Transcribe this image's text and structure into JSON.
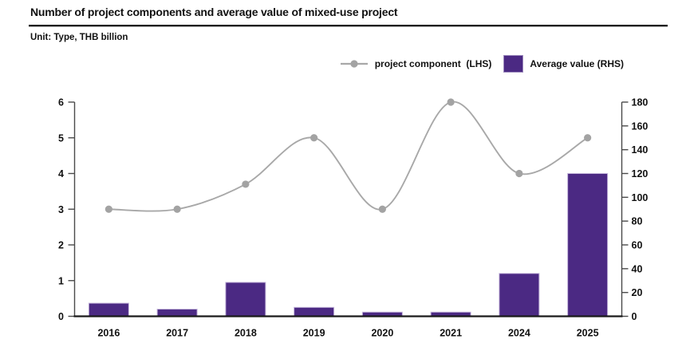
{
  "header": {
    "title": "Number of project components and average value of mixed-use project",
    "unit_label": "Unit: Type, THB billion"
  },
  "legend": {
    "items": [
      {
        "marker": "line-marker",
        "label": "project component  (LHS)"
      },
      {
        "marker": "box-marker",
        "label": "Average value (RHS)"
      }
    ]
  },
  "colors": {
    "bar_fill": "#4B2983",
    "bar_border": "#c3b4da",
    "line": "#a8a8a8",
    "marker": "#a3a3a3",
    "axis": "#4a4a4a",
    "baseline": "#1a1a1a",
    "text": "#111111"
  },
  "chart_data": {
    "type": "combo-line-bar",
    "title": "Number of project components and average value of mixed-use project",
    "subtitle": "Unit: Type, THB billion",
    "categories": [
      "2016",
      "2017",
      "2018",
      "2019",
      "2020",
      "2021",
      "2024",
      "2025"
    ],
    "series": [
      {
        "name": "project component (LHS)",
        "type": "line",
        "axis": "left",
        "smooth": true,
        "values": [
          3,
          3,
          3.7,
          5,
          3,
          6,
          4,
          5
        ]
      },
      {
        "name": "Average value (RHS)",
        "type": "bar",
        "axis": "right",
        "values": [
          11,
          6,
          28.5,
          7.5,
          3.5,
          3.5,
          36,
          120
        ]
      }
    ],
    "left_axis": {
      "min": 0,
      "max": 6,
      "step": 1,
      "ticks": [
        0,
        1,
        2,
        3,
        4,
        5,
        6
      ]
    },
    "right_axis": {
      "min": 0,
      "max": 180,
      "step": 20,
      "ticks": [
        0,
        20,
        40,
        60,
        80,
        100,
        120,
        140,
        160,
        180
      ]
    },
    "grid": false,
    "legend_position": "top-right"
  }
}
